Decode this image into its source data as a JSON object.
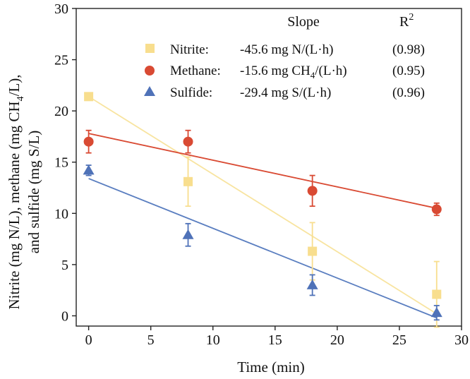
{
  "chart_data": {
    "type": "scatter",
    "title": "",
    "xlabel": "Time (min)",
    "ylabel_lines": [
      "Nitrite (mg N/L), methane (mg CH",
      "4",
      "/L),",
      "and sulfide (mg S/L)"
    ],
    "xlim": [
      -1,
      30
    ],
    "ylim": [
      -1,
      30
    ],
    "xticks": [
      0,
      5,
      10,
      15,
      20,
      25,
      30
    ],
    "yticks": [
      0,
      5,
      10,
      15,
      20,
      25,
      30
    ],
    "legend": {
      "placement": "top-right",
      "header_slope": "Slope",
      "header_r2": "R",
      "header_r2_sup": "2"
    },
    "series": [
      {
        "name": "Nitrite:",
        "color": "#F8DE8E",
        "fit_color": "#F8E4A0",
        "marker": "square",
        "slope_text": "-45.6 mg N/(L·h)",
        "r2_text": "(0.98)",
        "x": [
          0,
          8,
          18,
          28
        ],
        "y": [
          21.4,
          13.1,
          6.3,
          2.1
        ],
        "err": [
          0.3,
          2.4,
          2.8,
          3.2
        ],
        "fit": [
          [
            0,
            21.4
          ],
          [
            28,
            0.2
          ]
        ]
      },
      {
        "name": "Methane:",
        "color": "#D94A33",
        "fit_color": "#D94A33",
        "marker": "circle",
        "slope_text": "-15.6 mg CH",
        "slope_sub": "4",
        "slope_text_end": "/(L·h)",
        "r2_text": "(0.95)",
        "x": [
          0,
          8,
          18,
          28
        ],
        "y": [
          17.0,
          17.0,
          12.2,
          10.4
        ],
        "err": [
          1.1,
          1.1,
          1.5,
          0.6
        ],
        "fit": [
          [
            0,
            17.8
          ],
          [
            28,
            10.5
          ]
        ]
      },
      {
        "name": "Sulfide:",
        "color": "#4F72B8",
        "fit_color": "#5A7EC0",
        "marker": "triangle",
        "slope_text": "-29.4 mg S/(L·h)",
        "r2_text": "(0.96)",
        "x": [
          0,
          8,
          18,
          28
        ],
        "y": [
          14.2,
          7.9,
          3.0,
          0.3
        ],
        "err": [
          0.5,
          1.1,
          1.0,
          0.7
        ],
        "fit": [
          [
            0,
            13.4
          ],
          [
            28,
            -0.2
          ]
        ]
      }
    ]
  }
}
